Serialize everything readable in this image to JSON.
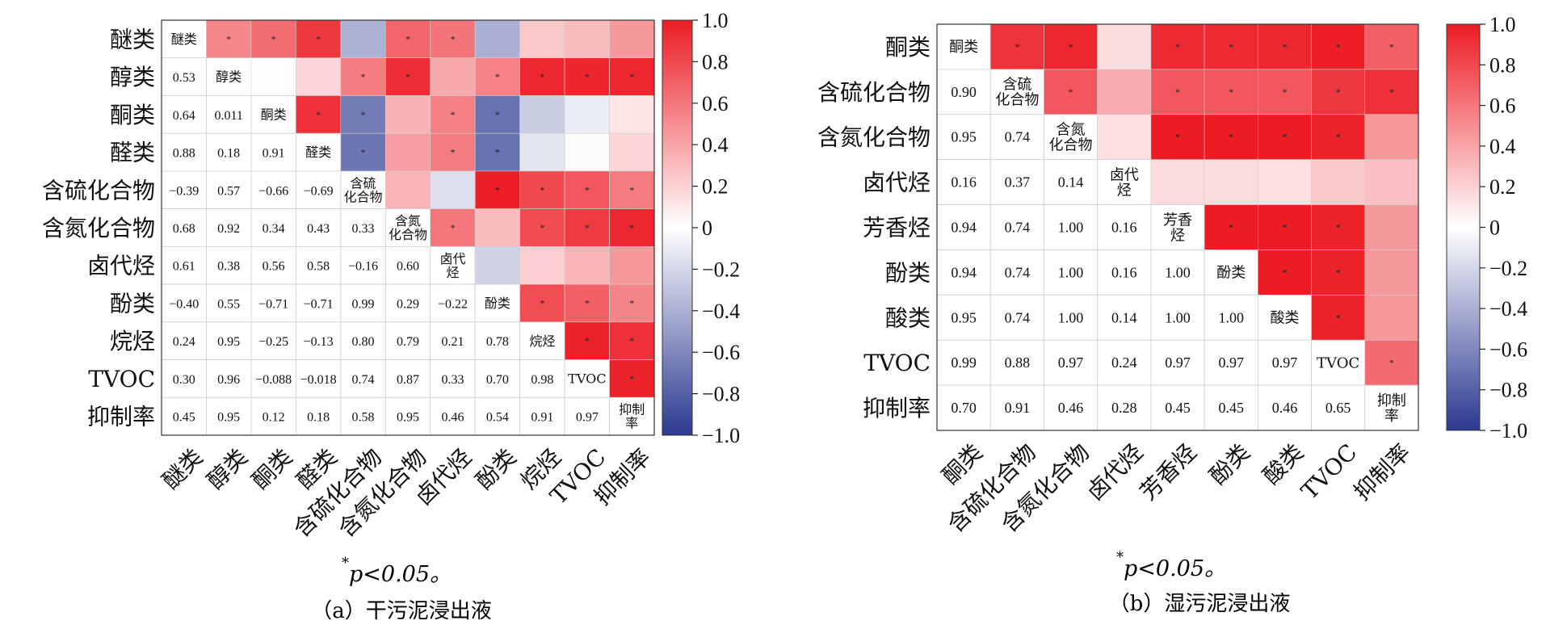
{
  "chart_data": [
    {
      "type": "heatmap",
      "variables": [
        "醚类",
        "醇类",
        "酮类",
        "醛类",
        "含硫化合物",
        "含氮化合物",
        "卤代烃",
        "酚类",
        "烷烃",
        "TVOC",
        "抑制率"
      ],
      "lower_values": [
        [],
        [
          "0.53"
        ],
        [
          "0.64",
          "0.011"
        ],
        [
          "0.88",
          "0.18",
          "0.91"
        ],
        [
          "−0.39",
          "0.57",
          "−0.66",
          "−0.69"
        ],
        [
          "0.68",
          "0.92",
          "0.34",
          "0.43",
          "0.33"
        ],
        [
          "0.61",
          "0.38",
          "0.56",
          "0.58",
          "−0.16",
          "0.60"
        ],
        [
          "−0.40",
          "0.55",
          "−0.71",
          "−0.71",
          "0.99",
          "0.29",
          "−0.22"
        ],
        [
          "0.24",
          "0.95",
          "−0.25",
          "−0.13",
          "0.80",
          "0.79",
          "0.21",
          "0.78"
        ],
        [
          "0.30",
          "0.96",
          "−0.088",
          "−0.018",
          "0.74",
          "0.87",
          "0.33",
          "0.70",
          "0.98"
        ],
        [
          "0.45",
          "0.95",
          "0.12",
          "0.18",
          "0.58",
          "0.95",
          "0.46",
          "0.54",
          "0.91",
          "0.97"
        ]
      ],
      "upper_sig": [
        [
          true,
          true,
          true,
          false,
          true,
          true,
          false,
          false,
          false,
          false
        ],
        [
          false,
          false,
          true,
          true,
          false,
          true,
          true,
          true,
          true
        ],
        [
          true,
          true,
          false,
          true,
          true,
          false,
          false,
          false
        ],
        [
          true,
          false,
          true,
          true,
          false,
          false,
          false
        ],
        [
          false,
          false,
          true,
          true,
          true,
          true
        ],
        [
          true,
          false,
          true,
          true,
          true
        ],
        [
          false,
          false,
          false,
          false
        ],
        [
          true,
          true,
          true
        ],
        [
          true,
          true
        ],
        [
          true
        ]
      ],
      "caption": "（a）干污泥浸出液",
      "note": "p<0.05。",
      "note_sup": "*",
      "sig_symbol": "*"
    },
    {
      "type": "heatmap",
      "variables": [
        "酮类",
        "含硫化合物",
        "含氮化合物",
        "卤代烃",
        "芳香烃",
        "酚类",
        "酸类",
        "TVOC",
        "抑制率"
      ],
      "lower_values": [
        [],
        [
          "0.90"
        ],
        [
          "0.95",
          "0.74"
        ],
        [
          "0.16",
          "0.37",
          "0.14"
        ],
        [
          "0.94",
          "0.74",
          "1.00",
          "0.16"
        ],
        [
          "0.94",
          "0.74",
          "1.00",
          "0.16",
          "1.00"
        ],
        [
          "0.95",
          "0.74",
          "1.00",
          "0.14",
          "1.00",
          "1.00"
        ],
        [
          "0.99",
          "0.88",
          "0.97",
          "0.24",
          "0.97",
          "0.97",
          "0.97"
        ],
        [
          "0.70",
          "0.91",
          "0.46",
          "0.28",
          "0.45",
          "0.45",
          "0.46",
          "0.65"
        ]
      ],
      "upper_sig": [
        [
          true,
          true,
          false,
          true,
          true,
          true,
          true,
          true
        ],
        [
          true,
          false,
          true,
          true,
          true,
          true,
          true
        ],
        [
          false,
          true,
          true,
          true,
          true,
          false
        ],
        [
          false,
          false,
          false,
          false,
          false
        ],
        [
          true,
          true,
          true,
          false
        ],
        [
          true,
          true,
          false
        ],
        [
          true,
          false
        ],
        [
          true
        ]
      ],
      "caption": "（b）湿污泥浸出液",
      "note": "p<0.05。",
      "note_sup": "*",
      "sig_symbol": "*"
    }
  ],
  "colorbar": {
    "ticks": [
      "1.0",
      "0.8",
      "0.6",
      "0.4",
      "0.2",
      "0",
      "−0.2",
      "−0.4",
      "−0.6",
      "−0.8",
      "−1.0"
    ],
    "range": [
      -1,
      1
    ],
    "colors": {
      "neg": "#2b3990",
      "mid": "#ffffff",
      "pos": "#ec1c24"
    }
  }
}
